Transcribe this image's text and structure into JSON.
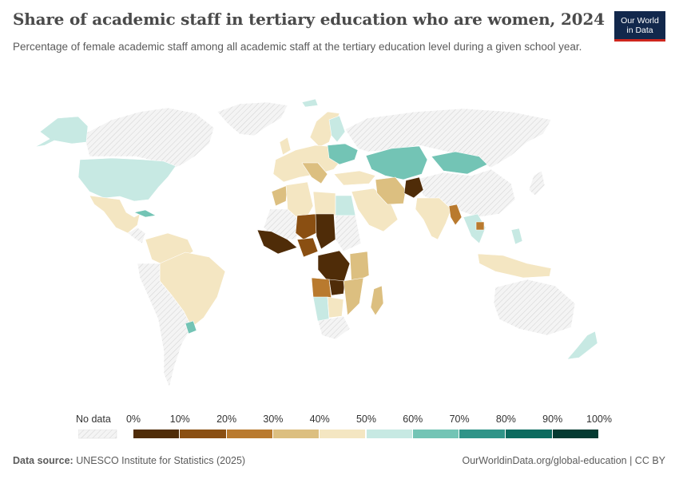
{
  "header": {
    "title": "Share of academic staff in tertiary education who are women, 2024",
    "subtitle": "Percentage of female academic staff among all academic staff at the tertiary education level during a given school year.",
    "logo_line1": "Our World",
    "logo_line2": "in Data"
  },
  "legend": {
    "no_data_label": "No data",
    "ticks": [
      "0%",
      "10%",
      "20%",
      "30%",
      "40%",
      "50%",
      "60%",
      "70%",
      "80%",
      "90%",
      "100%"
    ],
    "bins": [
      {
        "range": "0-10%",
        "color": "#4f2c08"
      },
      {
        "range": "10-20%",
        "color": "#8a4f12"
      },
      {
        "range": "20-30%",
        "color": "#b97a2e"
      },
      {
        "range": "30-40%",
        "color": "#dcbf80"
      },
      {
        "range": "40-50%",
        "color": "#f4e6c2"
      },
      {
        "range": "50-60%",
        "color": "#c7e9e3"
      },
      {
        "range": "60-70%",
        "color": "#73c4b5"
      },
      {
        "range": "70-80%",
        "color": "#2f9488"
      },
      {
        "range": "80-90%",
        "color": "#0c6b5f"
      },
      {
        "range": "90-100%",
        "color": "#053b32"
      }
    ]
  },
  "map": {
    "no_data_color": "#e6e6e6",
    "countries": [
      {
        "name": "United States",
        "bin": 5
      },
      {
        "name": "Alaska",
        "bin": 5
      },
      {
        "name": "Cuba",
        "bin": 6
      },
      {
        "name": "Mexico",
        "bin": 4
      },
      {
        "name": "Brazil",
        "bin": 4
      },
      {
        "name": "Uruguay",
        "bin": 6
      },
      {
        "name": "Colombia",
        "bin": 4
      },
      {
        "name": "Kazakhstan",
        "bin": 6
      },
      {
        "name": "Mongolia",
        "bin": 6
      },
      {
        "name": "Afghanistan",
        "bin": 0
      },
      {
        "name": "Iran",
        "bin": 3
      },
      {
        "name": "Egypt",
        "bin": 5
      },
      {
        "name": "Algeria",
        "bin": 4
      },
      {
        "name": "Morocco",
        "bin": 3
      },
      {
        "name": "Niger",
        "bin": 1
      },
      {
        "name": "Chad",
        "bin": 0
      },
      {
        "name": "DR Congo",
        "bin": 0
      },
      {
        "name": "Angola",
        "bin": 2
      },
      {
        "name": "Namibia",
        "bin": 5
      },
      {
        "name": "Madagascar",
        "bin": 3
      },
      {
        "name": "India",
        "bin": 4
      },
      {
        "name": "Myanmar",
        "bin": 2
      },
      {
        "name": "Indonesia",
        "bin": 4
      },
      {
        "name": "Philippines",
        "bin": 5
      },
      {
        "name": "New Zealand",
        "bin": 5
      },
      {
        "name": "Scandinavia",
        "bin": 4
      },
      {
        "name": "Ukraine",
        "bin": 6
      }
    ]
  },
  "footer": {
    "source_label": "Data source:",
    "source_text": "UNESCO Institute for Statistics (2025)",
    "url": "OurWorldinData.org/global-education | CC BY"
  }
}
